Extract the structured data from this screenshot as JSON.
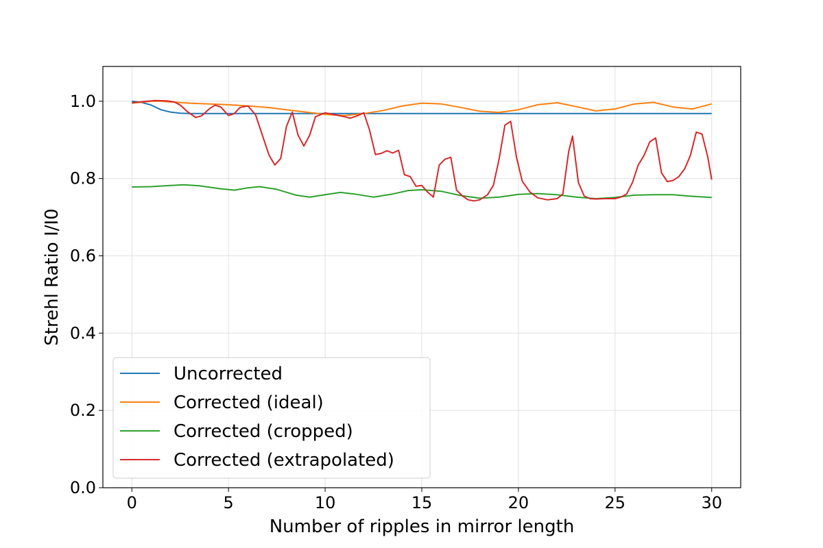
{
  "chart_data": {
    "type": "line",
    "title": "",
    "xlabel": "Number of ripples in mirror length",
    "ylabel": "Strehl Ratio I/I0",
    "xlim": [
      -1.5,
      31.5
    ],
    "ylim": [
      0.0,
      1.09
    ],
    "xticks": [
      0,
      5,
      10,
      15,
      20,
      25,
      30
    ],
    "yticks": [
      0.0,
      0.2,
      0.4,
      0.6,
      0.8,
      1.0
    ],
    "xtick_labels": [
      "0",
      "5",
      "10",
      "15",
      "20",
      "25",
      "30"
    ],
    "ytick_labels": [
      "0.0",
      "0.2",
      "0.4",
      "0.6",
      "0.8",
      "1.0"
    ],
    "grid": true,
    "legend_position": "lower-left",
    "series": [
      {
        "name": "Uncorrected",
        "color": "#1f77b4",
        "x": [
          0,
          0.5,
          1,
          1.5,
          2,
          2.5,
          3,
          4,
          5,
          10,
          15,
          20,
          25,
          30
        ],
        "y": [
          1.0,
          0.997,
          0.99,
          0.978,
          0.972,
          0.969,
          0.968,
          0.968,
          0.968,
          0.968,
          0.968,
          0.968,
          0.968,
          0.968
        ]
      },
      {
        "name": "Corrected (ideal)",
        "color": "#ff7f0e",
        "x": [
          0,
          1,
          1.5,
          2,
          3,
          4,
          5,
          6,
          7,
          8,
          9,
          10,
          11,
          12,
          13,
          14,
          15,
          16,
          17,
          18,
          19,
          20,
          21,
          22,
          23,
          24,
          25,
          26,
          27,
          28,
          29,
          30
        ],
        "y": [
          0.995,
          1.0,
          1.0,
          0.998,
          0.995,
          0.993,
          0.991,
          0.988,
          0.984,
          0.978,
          0.972,
          0.966,
          0.963,
          0.968,
          0.976,
          0.988,
          0.995,
          0.993,
          0.984,
          0.974,
          0.971,
          0.978,
          0.991,
          0.996,
          0.986,
          0.975,
          0.98,
          0.993,
          0.997,
          0.985,
          0.98,
          0.993
        ]
      },
      {
        "name": "Corrected (cropped)",
        "color": "#2ca02c",
        "x": [
          0,
          1,
          2,
          2.7,
          3.5,
          4.5,
          5.3,
          6,
          6.6,
          7.5,
          8.5,
          9.2,
          10,
          10.8,
          11.5,
          12.5,
          13.5,
          14.3,
          15,
          16,
          17,
          18,
          19,
          20,
          21,
          22,
          23,
          24,
          25,
          26,
          27,
          28,
          29,
          30
        ],
        "y": [
          0.778,
          0.779,
          0.782,
          0.784,
          0.781,
          0.774,
          0.77,
          0.776,
          0.779,
          0.772,
          0.757,
          0.752,
          0.758,
          0.764,
          0.76,
          0.752,
          0.76,
          0.769,
          0.771,
          0.767,
          0.756,
          0.749,
          0.752,
          0.759,
          0.761,
          0.758,
          0.752,
          0.748,
          0.751,
          0.757,
          0.758,
          0.758,
          0.754,
          0.751
        ]
      },
      {
        "name": "Corrected (extrapolated)",
        "color": "#d62728",
        "x": [
          0,
          0.6,
          1.2,
          1.8,
          2.2,
          2.5,
          2.9,
          3.3,
          3.6,
          4,
          4.3,
          4.6,
          5,
          5.3,
          5.6,
          6,
          6.4,
          6.8,
          7.1,
          7.4,
          7.7,
          8,
          8.3,
          8.6,
          8.9,
          9.2,
          9.5,
          10,
          10.5,
          11,
          11.3,
          11.7,
          12,
          12.3,
          12.6,
          12.9,
          13.2,
          13.5,
          13.8,
          14.1,
          14.4,
          14.7,
          15,
          15.3,
          15.6,
          15.9,
          16.2,
          16.5,
          16.8,
          17.1,
          17.4,
          17.7,
          18,
          18.4,
          18.7,
          19,
          19.3,
          19.6,
          19.9,
          20.2,
          20.6,
          21,
          21.5,
          22,
          22.3,
          22.6,
          22.8,
          23.1,
          23.4,
          23.7,
          24,
          24.5,
          25,
          25.3,
          25.6,
          25.9,
          26.2,
          26.5,
          26.8,
          27.1,
          27.4,
          27.7,
          28,
          28.3,
          28.6,
          28.9,
          29.2,
          29.5,
          29.8,
          30
        ],
        "y": [
          0.996,
          0.999,
          1.002,
          1.001,
          0.998,
          0.99,
          0.972,
          0.958,
          0.962,
          0.98,
          0.99,
          0.985,
          0.963,
          0.968,
          0.984,
          0.988,
          0.965,
          0.905,
          0.86,
          0.835,
          0.852,
          0.935,
          0.972,
          0.912,
          0.884,
          0.912,
          0.96,
          0.97,
          0.965,
          0.96,
          0.956,
          0.963,
          0.97,
          0.925,
          0.862,
          0.865,
          0.872,
          0.866,
          0.873,
          0.81,
          0.805,
          0.78,
          0.782,
          0.765,
          0.752,
          0.835,
          0.85,
          0.855,
          0.77,
          0.755,
          0.745,
          0.742,
          0.745,
          0.758,
          0.782,
          0.85,
          0.938,
          0.948,
          0.855,
          0.793,
          0.765,
          0.75,
          0.745,
          0.748,
          0.76,
          0.87,
          0.91,
          0.79,
          0.755,
          0.748,
          0.747,
          0.748,
          0.748,
          0.752,
          0.76,
          0.79,
          0.835,
          0.86,
          0.895,
          0.905,
          0.815,
          0.792,
          0.795,
          0.805,
          0.825,
          0.86,
          0.92,
          0.915,
          0.855,
          0.797
        ]
      }
    ]
  }
}
